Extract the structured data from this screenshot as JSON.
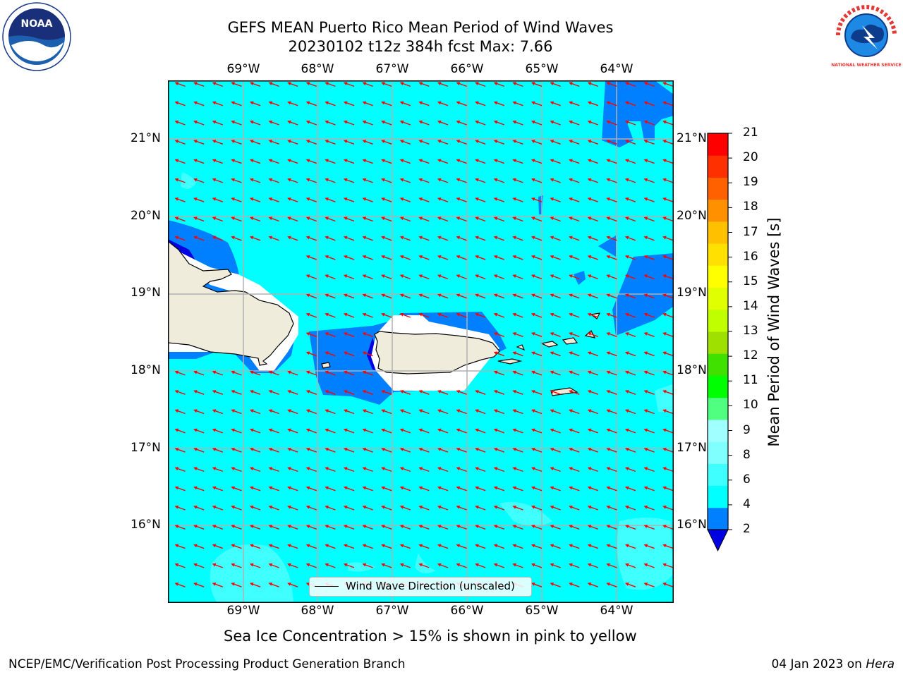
{
  "title": {
    "line1": "GEFS MEAN Puerto Rico Mean Period of Wind Waves",
    "line2": "20230102 t12z 384h fcst   Max: 7.66"
  },
  "map": {
    "lon_labels": [
      "69°W",
      "68°W",
      "67°W",
      "66°W",
      "65°W",
      "64°W"
    ],
    "lat_labels": [
      "21°N",
      "20°N",
      "19°N",
      "18°N",
      "17°N",
      "16°N"
    ],
    "arrow_color": "#ff0000",
    "land_color": "#efecdc",
    "sea_colors": {
      "lt4": "#0080ff",
      "lt2": "#0000e0",
      "b4_6": "#00ffff",
      "b6_8": "#40ffff"
    }
  },
  "legend": {
    "label": "Wind Wave Direction (unscaled)"
  },
  "colorbar": {
    "label": "Mean Period of Wind Waves [s]",
    "ticks": [
      "2",
      "4",
      "6",
      "8",
      "9",
      "10",
      "11",
      "12",
      "13",
      "14",
      "15",
      "16",
      "17",
      "18",
      "19",
      "20",
      "21"
    ],
    "colors": [
      "#0080ff",
      "#00ffff",
      "#40ffff",
      "#80ffff",
      "#a0ffff",
      "#50ff80",
      "#00ff00",
      "#40e000",
      "#a0e000",
      "#c0ff00",
      "#e0ff00",
      "#ffff00",
      "#ffe000",
      "#ffc000",
      "#ff9000",
      "#ff6000",
      "#ff3000",
      "#ff0000"
    ],
    "under_color": "#0000e0"
  },
  "subtitle": "Sea Ice Concentration > 15% is shown in pink to yellow",
  "footer": {
    "left": "NCEP/EMC/Verification Post Processing Product Generation Branch",
    "date": "04 Jan 2023 on ",
    "host": "Hera"
  },
  "logos": {
    "noaa": "NOAA",
    "nws": "NATIONAL WEATHER SERVICE"
  }
}
